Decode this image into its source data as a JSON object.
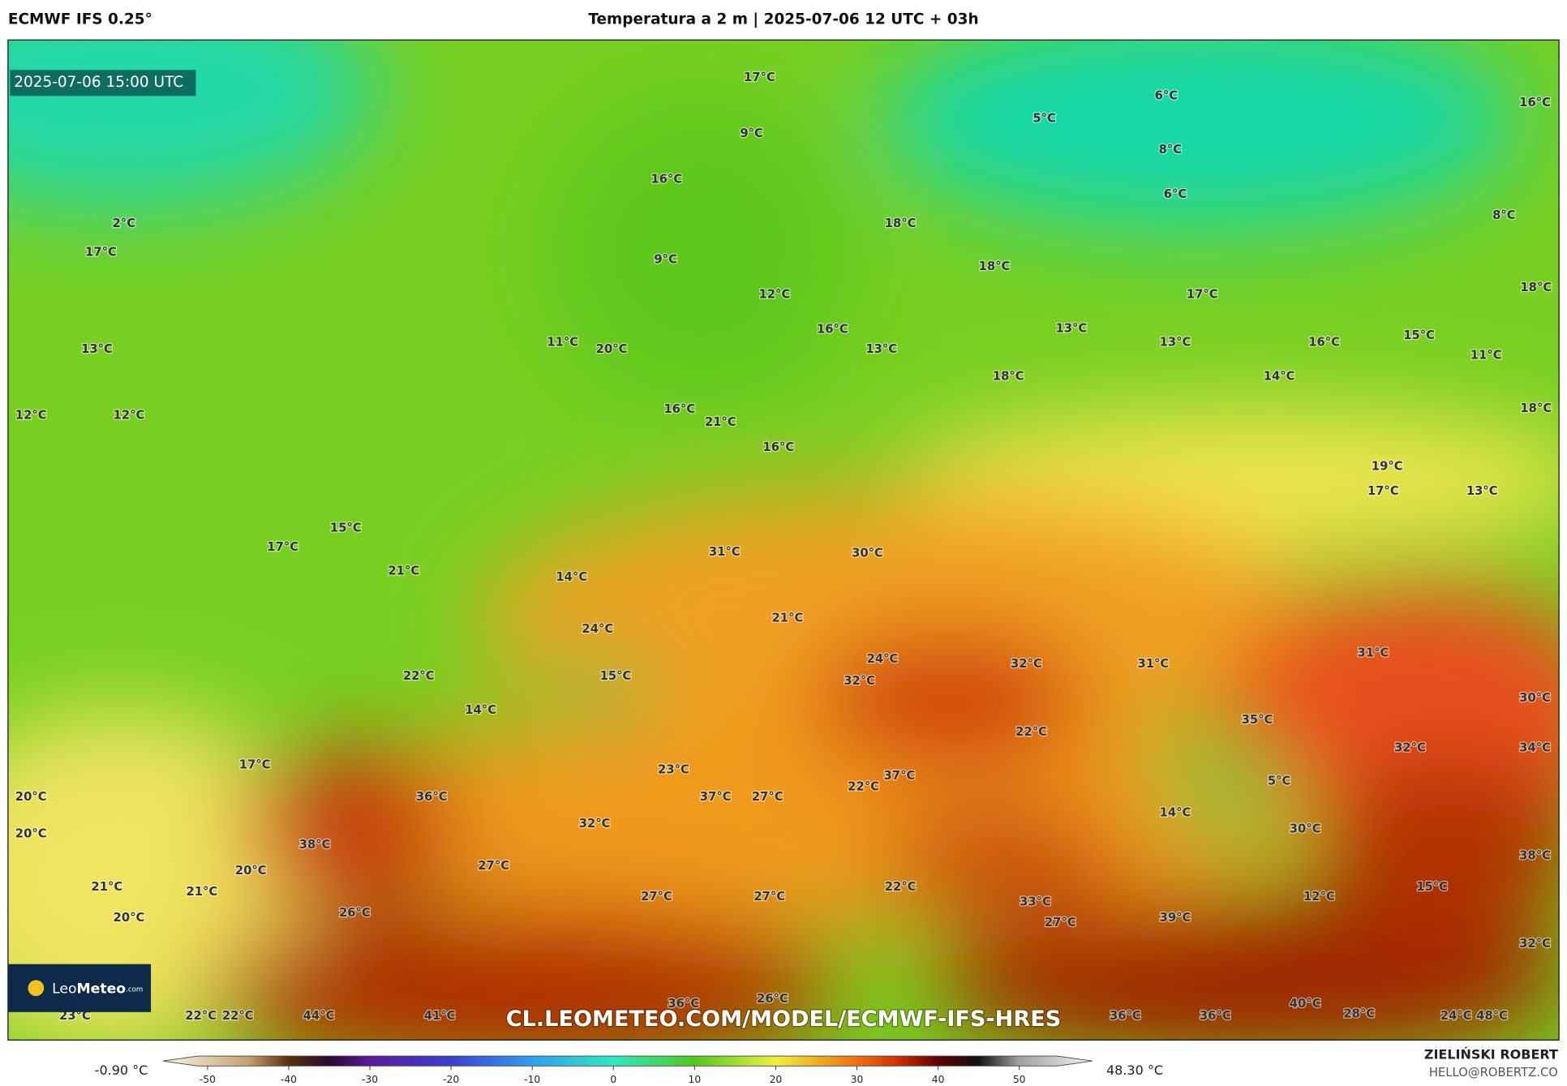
{
  "header": {
    "model": "ECMWF IFS 0.25°",
    "title": "Temperatura a 2 m | 2025-07-06 12 UTC + 03h"
  },
  "map": {
    "valid_time": "2025-07-06 15:00 UTC",
    "labels": [
      "17°C",
      "9°C",
      "6°C",
      "5°C",
      "16°C",
      "8°C",
      "6°C",
      "16°C",
      "2°C",
      "8°C",
      "18°C",
      "17°C",
      "9°C",
      "18°C",
      "18°C",
      "12°C",
      "17°C",
      "16°C",
      "13°C",
      "15°C",
      "11°C",
      "20°C",
      "13°C",
      "13°C",
      "13°C",
      "16°C",
      "11°C",
      "18°C",
      "14°C",
      "12°C",
      "12°C",
      "16°C",
      "18°C",
      "21°C",
      "16°C",
      "19°C",
      "17°C",
      "13°C",
      "15°C",
      "17°C",
      "31°C",
      "30°C",
      "21°C",
      "14°C",
      "21°C",
      "24°C",
      "31°C",
      "24°C",
      "32°C",
      "31°C",
      "22°C",
      "15°C",
      "32°C",
      "30°C",
      "14°C",
      "35°C",
      "22°C",
      "32°C",
      "34°C",
      "17°C",
      "23°C",
      "37°C",
      "5°C",
      "22°C",
      "20°C",
      "36°C",
      "37°C",
      "27°C",
      "14°C",
      "32°C",
      "30°C",
      "20°C",
      "38°C",
      "38°C",
      "27°C",
      "20°C",
      "21°C",
      "21°C",
      "22°C",
      "15°C",
      "27°C",
      "27°C",
      "12°C",
      "33°C",
      "26°C",
      "20°C",
      "39°C",
      "27°C",
      "32°C",
      "36°C",
      "26°C",
      "40°C",
      "23°C",
      "22°C",
      "22°C",
      "44°C",
      "41°C",
      "36°C",
      "36°C",
      "28°C",
      "24°C",
      "48°C"
    ],
    "logo": {
      "leo": "Leo",
      "meteo": "Meteo",
      "com": ".com"
    },
    "url": "CL.LEOMETEO.COM/MODEL/ECMWF-IFS-HRES"
  },
  "colorbar": {
    "min_label": "-0.90 °C",
    "max_label": "48.30 °C",
    "lim": [
      -55.5,
      59
    ],
    "ticks": [
      -50,
      -40,
      -30,
      -20,
      -10,
      0,
      10,
      20,
      30,
      40,
      50
    ]
  },
  "footer": {
    "author": "ZIELIŃSKI ROBERT",
    "email": "HELLO@ROBERTZ.CO"
  }
}
